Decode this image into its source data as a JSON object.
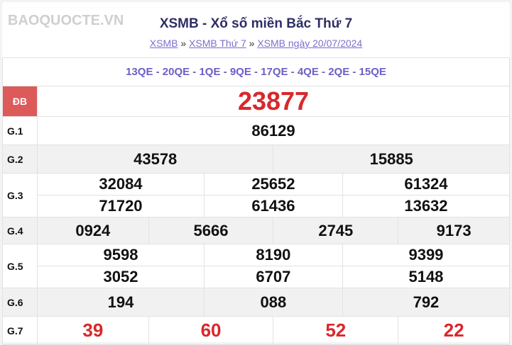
{
  "title": "XSMB - Xổ số miền Bắc Thứ 7",
  "breadcrumb": {
    "items": [
      "XSMB",
      "XSMB Thứ 7",
      "XSMB ngày 20/07/2024"
    ],
    "sep": "»"
  },
  "codes": "13QE - 20QE - 1QE - 9QE - 17QE - 4QE - 2QE - 15QE",
  "prizes": {
    "db": {
      "label": "ĐB",
      "values": [
        "23877"
      ]
    },
    "g1": {
      "label": "G.1",
      "values": [
        "86129"
      ]
    },
    "g2": {
      "label": "G.2",
      "values": [
        "43578",
        "15885"
      ]
    },
    "g3": {
      "label": "G.3",
      "values": [
        "32084",
        "25652",
        "61324",
        "71720",
        "61436",
        "13632"
      ]
    },
    "g4": {
      "label": "G.4",
      "values": [
        "0924",
        "5666",
        "2745",
        "9173"
      ]
    },
    "g5": {
      "label": "G.5",
      "values": [
        "9598",
        "8190",
        "9399",
        "3052",
        "6707",
        "5148"
      ]
    },
    "g6": {
      "label": "G.6",
      "values": [
        "194",
        "088",
        "792"
      ]
    },
    "g7": {
      "label": "G.7",
      "values": [
        "39",
        "60",
        "52",
        "22"
      ]
    }
  },
  "watermark": "BAOQUOCTE.VN",
  "colors": {
    "title": "#2e2e66",
    "link": "#7a6fcf",
    "special": "#d8282b",
    "db_label_bg": "#dd5a5a"
  }
}
